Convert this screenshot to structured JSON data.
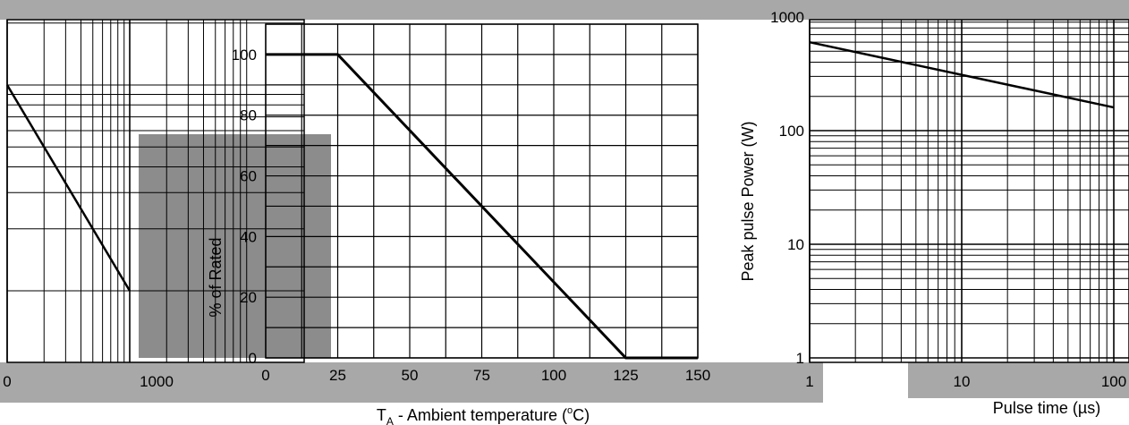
{
  "colors": {
    "background": "#ffffff",
    "band": "#a8a8a8",
    "panel_gray": "#8c8c8c",
    "grid": "#000000",
    "curve": "#000000"
  },
  "chart_data": [
    {
      "type": "line",
      "xscale": "log",
      "yscale": "log",
      "x_tick_labels": [
        "0",
        "1000"
      ],
      "series": [
        {
          "x": [
            100,
            1000
          ],
          "y": [
            100,
            10
          ]
        }
      ],
      "grid": true
    },
    {
      "type": "line",
      "title": "",
      "xlabel_parts": {
        "symbol": "T",
        "subscript": "A",
        "text": " - Ambient temperature (",
        "degree": "o",
        "unit": "C)"
      },
      "ylabel": "% of Rated",
      "xlim": [
        0,
        150
      ],
      "ylim": [
        0,
        110
      ],
      "x_ticks": [
        0,
        25,
        50,
        75,
        100,
        125,
        150
      ],
      "x_tick_labels": [
        "0",
        "25",
        "50",
        "75",
        "100",
        "125",
        "150"
      ],
      "y_ticks": [
        0,
        20,
        40,
        60,
        80,
        100
      ],
      "y_tick_labels": [
        "0",
        "20",
        "40",
        "60",
        "80",
        "100"
      ],
      "series": [
        {
          "x": [
            0,
            25,
            125,
            150
          ],
          "y": [
            100,
            100,
            0,
            0
          ]
        }
      ],
      "grid": true
    },
    {
      "type": "line",
      "xscale": "log",
      "yscale": "log",
      "xlabel_parts": {
        "text": "Pulse time (",
        "mu": "µ",
        "unit": "s)"
      },
      "ylabel": "Peak pulse Power (W)",
      "y_tick_labels": [
        "1",
        "10",
        "100",
        "1000"
      ],
      "x_tick_labels": [
        "1",
        "10",
        "100"
      ],
      "series": [
        {
          "x": [
            1,
            100
          ],
          "y": [
            600,
            160
          ]
        }
      ],
      "grid": true
    }
  ]
}
